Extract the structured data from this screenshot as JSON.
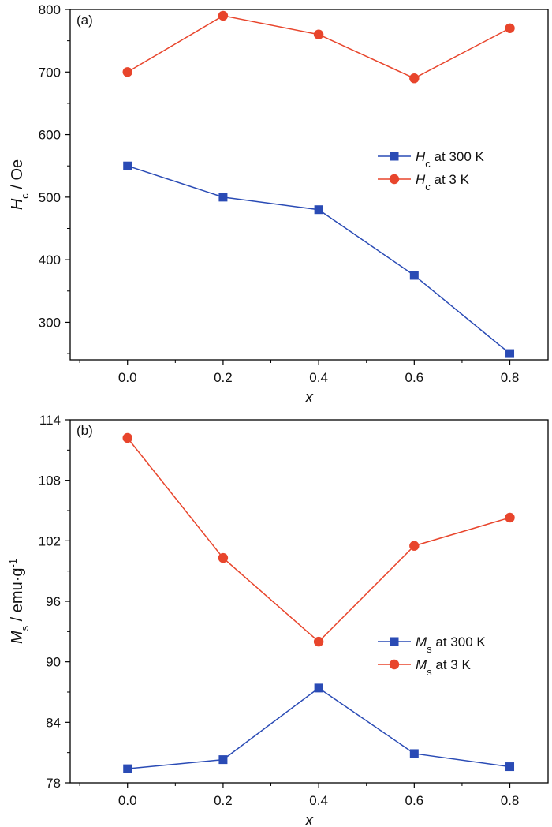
{
  "colors": {
    "series_300K": "#2a4bb5",
    "series_3K": "#e8452c",
    "axis": "#000000"
  },
  "chart_data": [
    {
      "type": "line",
      "panel_label": "(a)",
      "x": [
        0.0,
        0.2,
        0.4,
        0.6,
        0.8
      ],
      "x_ticks": [
        "0.0",
        "0.2",
        "0.4",
        "0.6",
        "0.8"
      ],
      "xlim": [
        -0.12,
        0.88
      ],
      "xlabel": "x",
      "ylabel": {
        "sym": "H",
        "sub": "c",
        "rest": " / Oe"
      },
      "ylim": [
        240,
        800
      ],
      "y_ticks": [
        "300",
        "400",
        "500",
        "600",
        "700",
        "800"
      ],
      "y_tick_values": [
        300,
        400,
        500,
        600,
        700,
        800
      ],
      "legend_position": "center-right",
      "series": [
        {
          "name": "Hc at 300 K",
          "sym": "H",
          "sub": "c",
          "rest": " at 300 K",
          "marker": "square",
          "color": "#2a4bb5",
          "values": [
            550,
            500,
            480,
            375,
            250
          ]
        },
        {
          "name": "Hc at 3 K",
          "sym": "H",
          "sub": "c",
          "rest": " at 3 K",
          "marker": "circle",
          "color": "#e8452c",
          "values": [
            700,
            790,
            760,
            690,
            770
          ]
        }
      ]
    },
    {
      "type": "line",
      "panel_label": "(b)",
      "x": [
        0.0,
        0.2,
        0.4,
        0.6,
        0.8
      ],
      "x_ticks": [
        "0.0",
        "0.2",
        "0.4",
        "0.6",
        "0.8"
      ],
      "xlim": [
        -0.12,
        0.88
      ],
      "xlabel": "x",
      "ylabel": {
        "sym": "M",
        "sub": "s",
        "rest": " / emu·g",
        "sup": "-1"
      },
      "ylim": [
        78,
        114
      ],
      "y_ticks": [
        "78",
        "84",
        "90",
        "96",
        "102",
        "108",
        "114"
      ],
      "y_tick_values": [
        78,
        84,
        90,
        96,
        102,
        108,
        114
      ],
      "legend_position": "lower-right",
      "series": [
        {
          "name": "Ms at 300 K",
          "sym": "M",
          "sub": "s",
          "rest": " at 300 K",
          "marker": "square",
          "color": "#2a4bb5",
          "values": [
            79.4,
            80.3,
            87.4,
            80.9,
            79.6
          ]
        },
        {
          "name": "Ms at 3 K",
          "sym": "M",
          "sub": "s",
          "rest": " at 3 K",
          "marker": "circle",
          "color": "#e8452c",
          "values": [
            112.2,
            100.3,
            92.0,
            101.5,
            104.3
          ]
        }
      ]
    }
  ]
}
